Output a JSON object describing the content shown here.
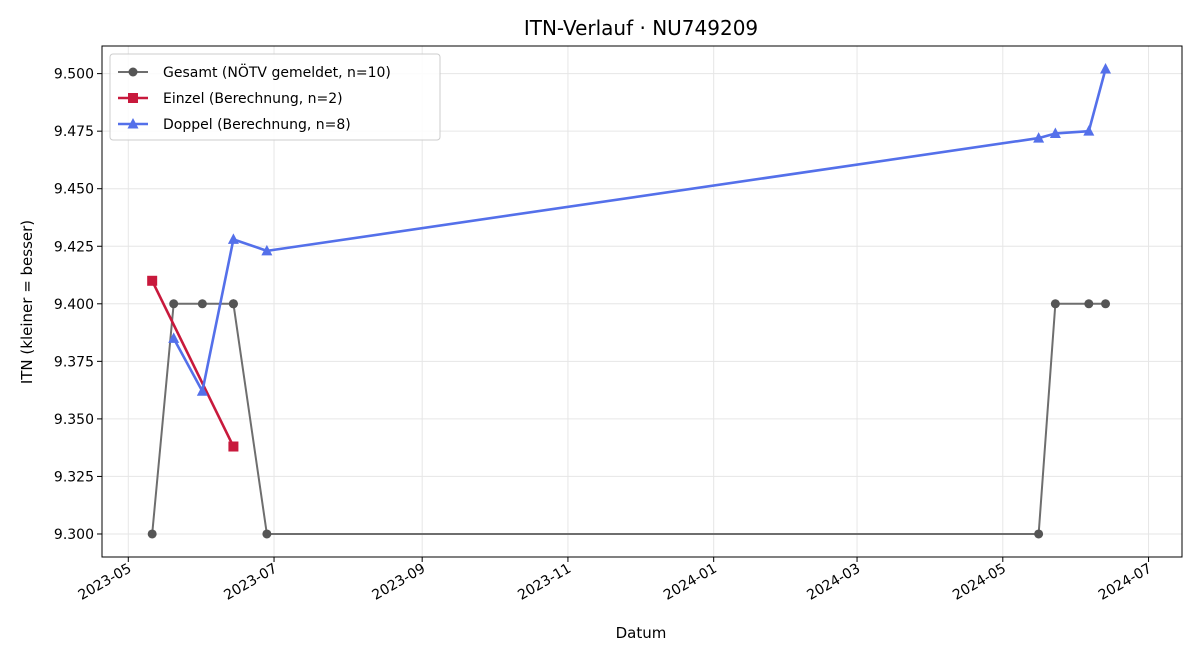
{
  "chart_data": {
    "type": "line",
    "title": "ITN-Verlauf · NU749209",
    "xlabel": "Datum",
    "ylabel": "ITN  (kleiner = besser)",
    "x_type": "date",
    "xlim": [
      "2023-04-20",
      "2024-07-15"
    ],
    "ylim": [
      9.29,
      9.512
    ],
    "grid": true,
    "legend_position": "top-left",
    "x_ticks": [
      "2023-05-01",
      "2023-07-01",
      "2023-09-01",
      "2023-11-01",
      "2024-01-01",
      "2024-03-01",
      "2024-05-01",
      "2024-07-01"
    ],
    "x_tick_labels": [
      "2023-05",
      "2023-07",
      "2023-09",
      "2023-11",
      "2024-01",
      "2024-03",
      "2024-05",
      "2024-07"
    ],
    "y_ticks": [
      9.3,
      9.325,
      9.35,
      9.375,
      9.4,
      9.425,
      9.45,
      9.475,
      9.5
    ],
    "y_tick_labels": [
      "9.300",
      "9.325",
      "9.350",
      "9.375",
      "9.400",
      "9.425",
      "9.450",
      "9.475",
      "9.500"
    ],
    "series": [
      {
        "name": "Gesamt (NÖTV gemeldet, n=10)",
        "color": "#6e6e6e",
        "marker": "circle",
        "points": [
          {
            "x": "2023-05-11",
            "y": 9.3
          },
          {
            "x": "2023-05-20",
            "y": 9.4
          },
          {
            "x": "2023-06-01",
            "y": 9.4
          },
          {
            "x": "2023-06-14",
            "y": 9.4
          },
          {
            "x": "2023-06-14",
            "y": 9.4
          },
          {
            "x": "2023-06-28",
            "y": 9.3
          },
          {
            "x": "2024-05-16",
            "y": 9.3
          },
          {
            "x": "2024-05-23",
            "y": 9.4
          },
          {
            "x": "2024-06-06",
            "y": 9.4
          },
          {
            "x": "2024-06-13",
            "y": 9.4
          }
        ]
      },
      {
        "name": "Einzel (Berechnung, n=2)",
        "color": "#c8193c",
        "marker": "square",
        "points": [
          {
            "x": "2023-05-11",
            "y": 9.41
          },
          {
            "x": "2023-06-14",
            "y": 9.338
          }
        ]
      },
      {
        "name": "Doppel (Berechnung, n=8)",
        "color": "#5470ea",
        "marker": "triangle",
        "points": [
          {
            "x": "2023-05-20",
            "y": 9.385
          },
          {
            "x": "2023-06-01",
            "y": 9.362
          },
          {
            "x": "2023-06-14",
            "y": 9.428
          },
          {
            "x": "2023-06-28",
            "y": 9.423
          },
          {
            "x": "2024-05-16",
            "y": 9.472
          },
          {
            "x": "2024-05-23",
            "y": 9.474
          },
          {
            "x": "2024-06-06",
            "y": 9.475
          },
          {
            "x": "2024-06-13",
            "y": 9.502
          }
        ]
      }
    ]
  }
}
